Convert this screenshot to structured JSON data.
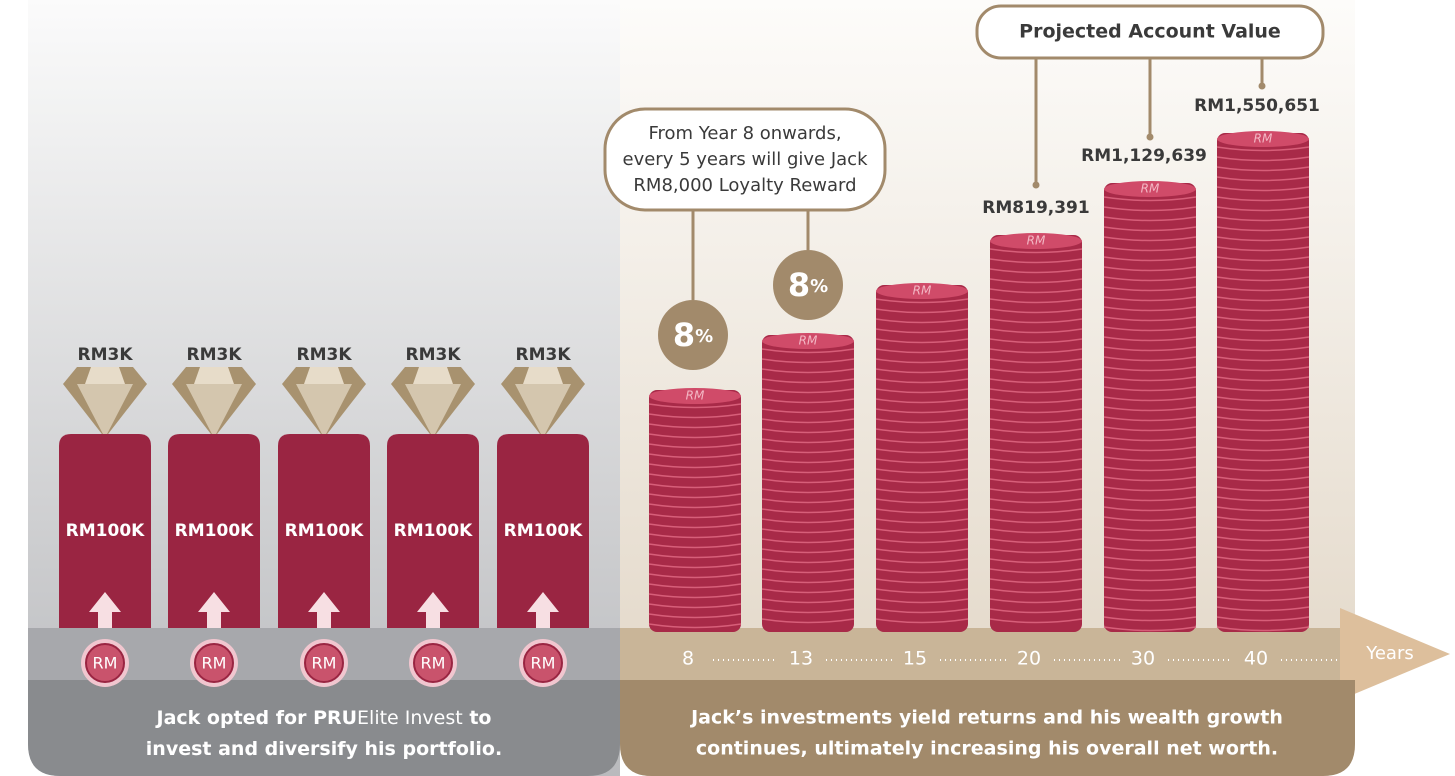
{
  "left": {
    "deposits": [
      {
        "reward": "RM3K",
        "amount": "RM100K",
        "coin": "RM"
      },
      {
        "reward": "RM3K",
        "amount": "RM100K",
        "coin": "RM"
      },
      {
        "reward": "RM3K",
        "amount": "RM100K",
        "coin": "RM"
      },
      {
        "reward": "RM3K",
        "amount": "RM100K",
        "coin": "RM"
      },
      {
        "reward": "RM3K",
        "amount": "RM100K",
        "coin": "RM"
      }
    ],
    "caption": [
      [
        "Jack opted for ",
        "PRU",
        "Elite Invest",
        " to"
      ],
      [
        "invest and diversify his portfolio."
      ]
    ]
  },
  "right": {
    "callout": [
      "From Year 8 onwards,",
      "every 5 years will give Jack",
      "RM8,000 Loyalty Reward"
    ],
    "bonus": [
      {
        "number": "8",
        "unit": "%"
      },
      {
        "number": "8",
        "unit": "%"
      }
    ],
    "projected_label": "Projected Account Value",
    "coin_mark": "RM",
    "stacks": [
      {
        "year": "8"
      },
      {
        "year": "13"
      },
      {
        "year": "15"
      },
      {
        "year": "20",
        "value": "RM819,391"
      },
      {
        "year": "30",
        "value": "RM1,129,639"
      },
      {
        "year": "40",
        "value": "RM1,550,651"
      }
    ],
    "axis_label": "Years",
    "caption": [
      "Jack’s investments yield returns and his wealth growth",
      "continues, ultimately increasing his overall net worth."
    ]
  }
}
